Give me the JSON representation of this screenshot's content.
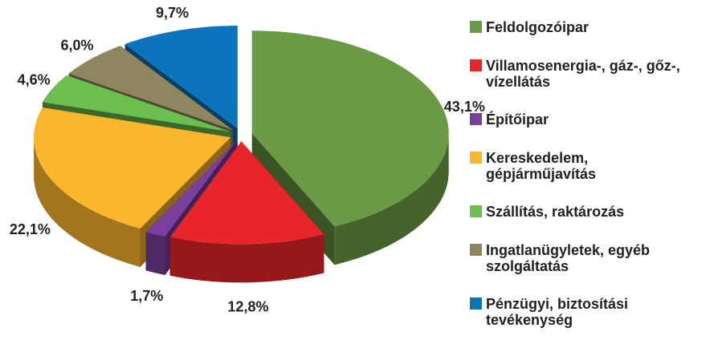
{
  "chart_data": {
    "type": "pie",
    "categories": [
      "Feldolgozóipar",
      "Villamosenergia-, gáz-, gőz-, vízellátás",
      "Építőipar",
      "Kereskedelem, gépjárműjavítás",
      "Szállítás, raktározás",
      "Ingatlanügyletek, egyéb szolgáltatás",
      "Pénzügyi, biztosítási tevékenység"
    ],
    "values": [
      43.1,
      12.8,
      1.7,
      22.1,
      4.6,
      6.0,
      9.7
    ],
    "value_labels": [
      "43,1%",
      "12,8%",
      "1,7%",
      "22,1%",
      "4,6%",
      "6,0%",
      "9,7%"
    ],
    "colors": [
      "#6a9a45",
      "#e8262a",
      "#7b3f9e",
      "#fbb62b",
      "#6cbf4f",
      "#8f8660",
      "#0b74bd"
    ],
    "legend": "right"
  }
}
